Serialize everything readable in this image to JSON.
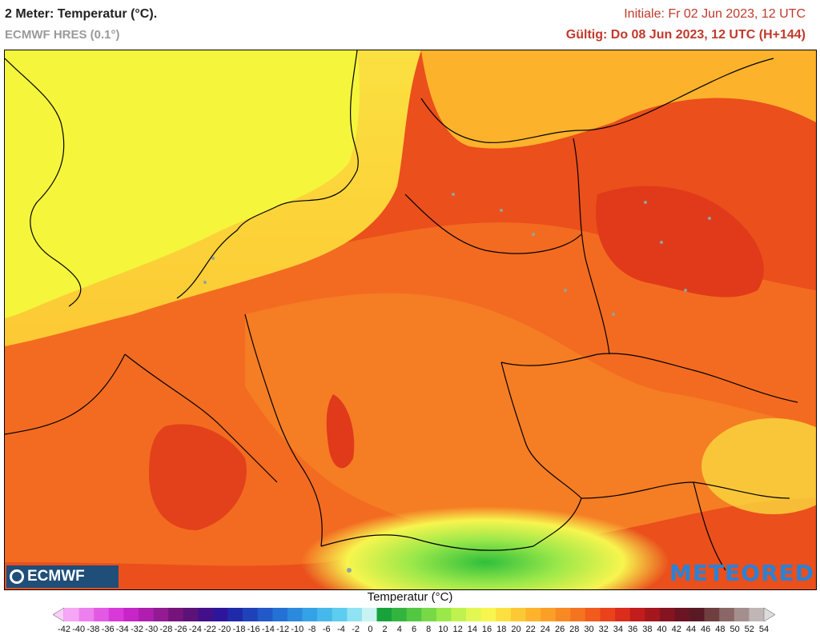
{
  "header": {
    "title": "2 Meter: Temperatur (°C).",
    "model": "ECMWF HRES (0.1°)",
    "initial": "Initiale: Fr 02 Jun 2023, 12 UTC",
    "valid": "Gültig: Do 08 Jun 2023, 12 UTC (H+144)"
  },
  "logos": {
    "left": "ECMWF",
    "right": "METEORED"
  },
  "legend": {
    "title": "Temperatur (°C)",
    "ticks": [
      "-42",
      "-40",
      "-38",
      "-36",
      "-34",
      "-32",
      "-30",
      "-28",
      "-26",
      "-24",
      "-22",
      "-20",
      "-18",
      "-16",
      "-14",
      "-12",
      "-10",
      "-8",
      "-6",
      "-4",
      "-2",
      "0",
      "2",
      "4",
      "6",
      "8",
      "10",
      "12",
      "14",
      "16",
      "18",
      "20",
      "22",
      "24",
      "26",
      "28",
      "30",
      "32",
      "34",
      "36",
      "38",
      "40",
      "42",
      "44",
      "46",
      "48",
      "50",
      "52",
      "54"
    ],
    "colors": [
      "#ffccff",
      "#f5a6f5",
      "#ee7fee",
      "#e459e4",
      "#d939d9",
      "#c825c8",
      "#b01eb0",
      "#931a93",
      "#76147b",
      "#5c1278",
      "#44108a",
      "#2e169c",
      "#1f2aab",
      "#1f42bb",
      "#2159c8",
      "#2471d5",
      "#2b8ade",
      "#33a2e6",
      "#45b8ec",
      "#5ccdef",
      "#8fe3f2",
      "#c9f3f3",
      "#17a33b",
      "#32b53f",
      "#52c742",
      "#76d945",
      "#9be84a",
      "#c0f24f",
      "#e2f752",
      "#f7f54e",
      "#fbe040",
      "#fcc934",
      "#fdb32b",
      "#fc9f26",
      "#f98922",
      "#f6731f",
      "#f25b1c",
      "#ea431b",
      "#dc2c1b",
      "#c21d1c",
      "#a4171c",
      "#861420",
      "#6a1424",
      "#5a1a25",
      "#6f3f40",
      "#8a6766",
      "#a58f8e",
      "#c0b6b5",
      "#dcdcdc"
    ]
  },
  "colors": {
    "title": "#222222",
    "model": "#9a9a9a",
    "date": "#c0392b",
    "sea_cool": "#f5f53c",
    "warm": "#f07a24",
    "hot": "#e8501e"
  }
}
